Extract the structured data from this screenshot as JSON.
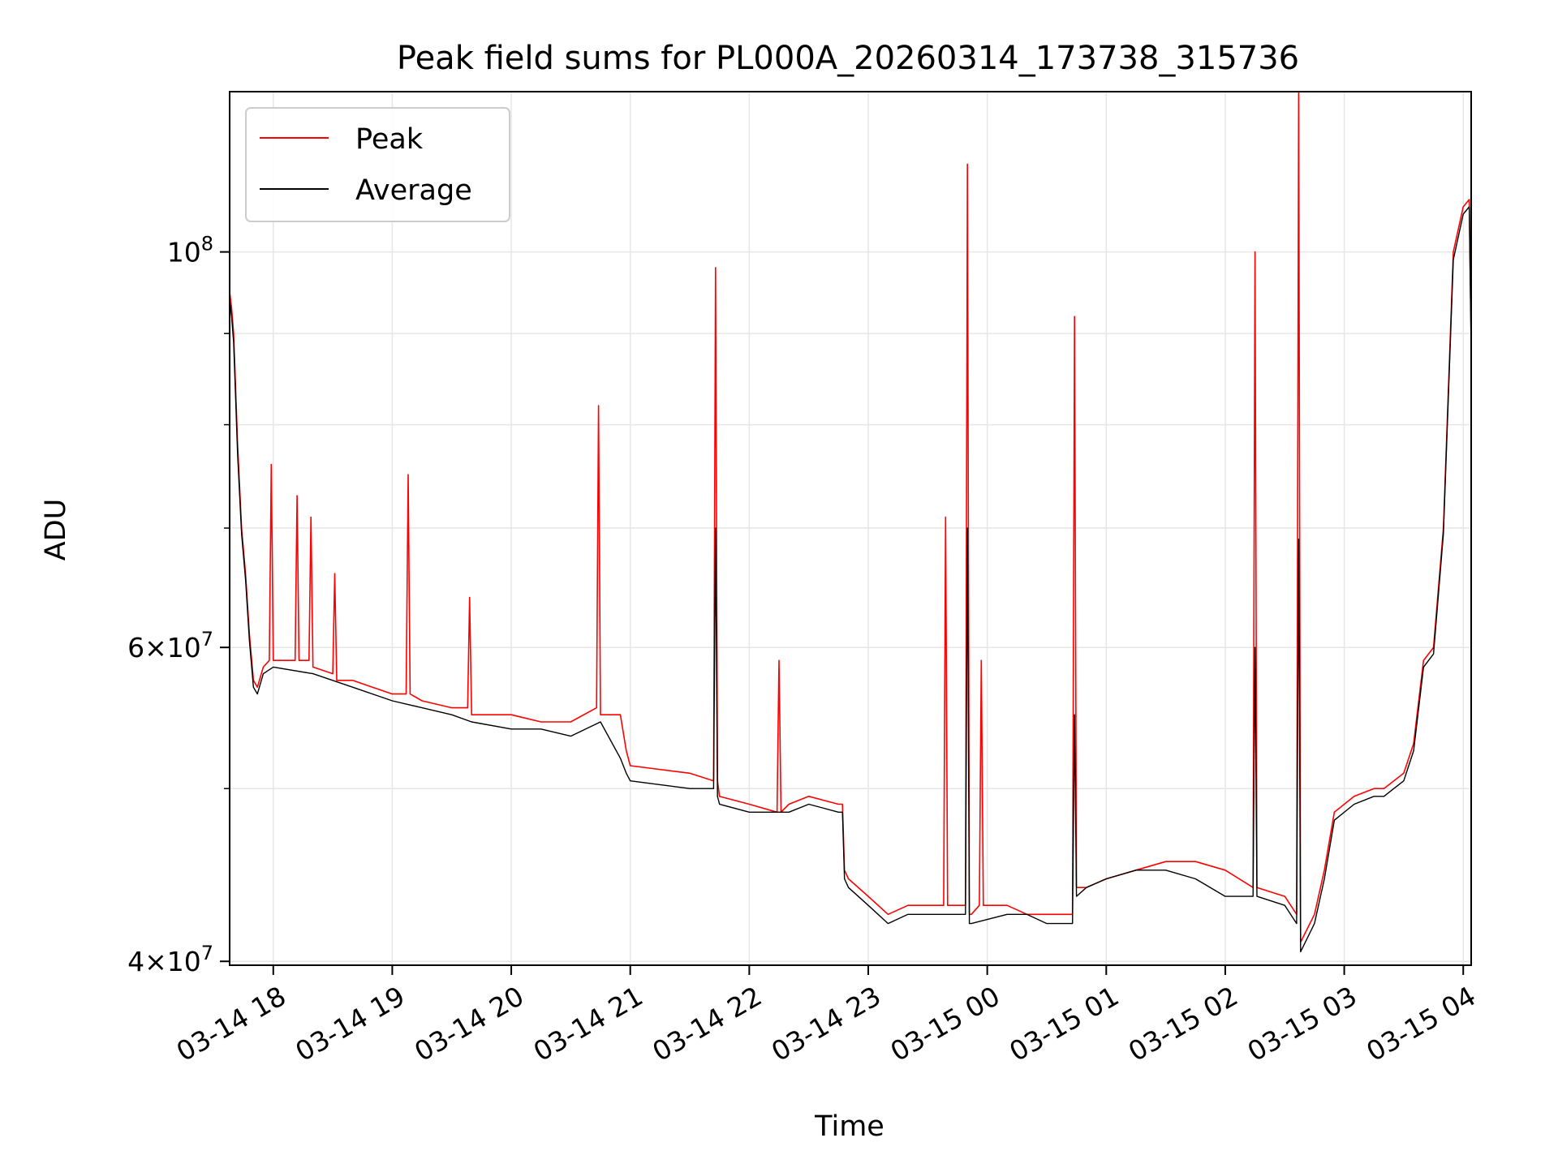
{
  "chart_data": {
    "type": "line",
    "title": "Peak field sums for PL000A_20260314_173738_315736",
    "xlabel": "Time",
    "ylabel": "ADU",
    "yscale": "log",
    "ylim": [
      39800000,
      123000000
    ],
    "xlim": [
      "2026-03-14 17:38",
      "2026-03-15 04:04"
    ],
    "x_ticks": [
      "03-14 18",
      "03-14 19",
      "03-14 20",
      "03-14 21",
      "03-14 22",
      "03-14 23",
      "03-15 00",
      "03-15 01",
      "03-15 02",
      "03-15 03",
      "03-15 04"
    ],
    "y_tick_labels": [
      {
        "value": 40000000,
        "base": "4×10",
        "exp": "7"
      },
      {
        "value": 60000000,
        "base": "6×10",
        "exp": "7"
      },
      {
        "value": 100000000,
        "base": "10",
        "exp": "8"
      }
    ],
    "y_minor_ticks": [
      50000000,
      70000000,
      80000000,
      90000000
    ],
    "grid": true,
    "legend_position": "upper-left",
    "series": [
      {
        "name": "Peak",
        "color": "#ff0000",
        "x": [
          "2026-03-14 17:38",
          "2026-03-14 17:39",
          "2026-03-14 17:40",
          "2026-03-14 17:41",
          "2026-03-14 17:42",
          "2026-03-14 17:44",
          "2026-03-14 17:46",
          "2026-03-14 17:48",
          "2026-03-14 17:50",
          "2026-03-14 17:52",
          "2026-03-14 17:55",
          "2026-03-14 17:58",
          "2026-03-14 17:59",
          "2026-03-14 18:00",
          "2026-03-14 18:05",
          "2026-03-14 18:11",
          "2026-03-14 18:12",
          "2026-03-14 18:13",
          "2026-03-14 18:18",
          "2026-03-14 18:19",
          "2026-03-14 18:20",
          "2026-03-14 18:30",
          "2026-03-14 18:31",
          "2026-03-14 18:32",
          "2026-03-14 18:40",
          "2026-03-14 18:50",
          "2026-03-14 19:00",
          "2026-03-14 19:07",
          "2026-03-14 19:08",
          "2026-03-14 19:09",
          "2026-03-14 19:15",
          "2026-03-14 19:30",
          "2026-03-14 19:38",
          "2026-03-14 19:39",
          "2026-03-14 19:40",
          "2026-03-14 20:00",
          "2026-03-14 20:15",
          "2026-03-14 20:30",
          "2026-03-14 20:43",
          "2026-03-14 20:44",
          "2026-03-14 20:45",
          "2026-03-14 20:55",
          "2026-03-14 20:58",
          "2026-03-14 21:00",
          "2026-03-14 21:30",
          "2026-03-14 21:42",
          "2026-03-14 21:43",
          "2026-03-14 21:44",
          "2026-03-14 21:45",
          "2026-03-14 22:00",
          "2026-03-14 22:14",
          "2026-03-14 22:15",
          "2026-03-14 22:16",
          "2026-03-14 22:20",
          "2026-03-14 22:30",
          "2026-03-14 22:45",
          "2026-03-14 22:47",
          "2026-03-14 22:48",
          "2026-03-14 22:50",
          "2026-03-14 23:00",
          "2026-03-14 23:10",
          "2026-03-14 23:20",
          "2026-03-14 23:38",
          "2026-03-14 23:39",
          "2026-03-14 23:40",
          "2026-03-14 23:49",
          "2026-03-14 23:50",
          "2026-03-14 23:51",
          "2026-03-14 23:52",
          "2026-03-14 23:56",
          "2026-03-14 23:57",
          "2026-03-14 23:58",
          "2026-03-15 00:10",
          "2026-03-15 00:20",
          "2026-03-15 00:30",
          "2026-03-15 00:43",
          "2026-03-15 00:44",
          "2026-03-15 00:45",
          "2026-03-15 00:50",
          "2026-03-15 01:00",
          "2026-03-15 01:15",
          "2026-03-15 01:30",
          "2026-03-15 01:45",
          "2026-03-15 02:00",
          "2026-03-15 02:14",
          "2026-03-15 02:15",
          "2026-03-15 02:16",
          "2026-03-15 02:30",
          "2026-03-15 02:36",
          "2026-03-15 02:37",
          "2026-03-15 02:38",
          "2026-03-15 02:45",
          "2026-03-15 02:50",
          "2026-03-15 02:55",
          "2026-03-15 03:05",
          "2026-03-15 03:15",
          "2026-03-15 03:20",
          "2026-03-15 03:25",
          "2026-03-15 03:30",
          "2026-03-15 03:35",
          "2026-03-15 03:40",
          "2026-03-15 03:45",
          "2026-03-15 03:50",
          "2026-03-15 03:55",
          "2026-03-15 04:00",
          "2026-03-15 04:03",
          "2026-03-15 04:04"
        ],
        "y": [
          95000000,
          93000000,
          90000000,
          84000000,
          78000000,
          70000000,
          66000000,
          61000000,
          57500000,
          57000000,
          58500000,
          59000000,
          76000000,
          59000000,
          59000000,
          59000000,
          73000000,
          59000000,
          59000000,
          71000000,
          58500000,
          58000000,
          66000000,
          57500000,
          57500000,
          57000000,
          56500000,
          56500000,
          75000000,
          56500000,
          56000000,
          55500000,
          55500000,
          64000000,
          55000000,
          55000000,
          54500000,
          54500000,
          55500000,
          82000000,
          55000000,
          55000000,
          52500000,
          51500000,
          51000000,
          50500000,
          98000000,
          50500000,
          49500000,
          49000000,
          48500000,
          59000000,
          48500000,
          49000000,
          49500000,
          49000000,
          49000000,
          45000000,
          44500000,
          43500000,
          42500000,
          43000000,
          43000000,
          71000000,
          43000000,
          43000000,
          112000000,
          42500000,
          42500000,
          43000000,
          59000000,
          43000000,
          43000000,
          42500000,
          42500000,
          42500000,
          92000000,
          44000000,
          44000000,
          44500000,
          45000000,
          45500000,
          45500000,
          45000000,
          44000000,
          100000000,
          44000000,
          43500000,
          42500000,
          123000000,
          41000000,
          42500000,
          45000000,
          48500000,
          49500000,
          50000000,
          50000000,
          50500000,
          51000000,
          53000000,
          59000000,
          60000000,
          70000000,
          100000000,
          106000000,
          107000000,
          89000000
        ]
      },
      {
        "name": "Average",
        "color": "#000000",
        "x": [
          "2026-03-14 17:38",
          "2026-03-14 17:39",
          "2026-03-14 17:40",
          "2026-03-14 17:41",
          "2026-03-14 17:42",
          "2026-03-14 17:44",
          "2026-03-14 17:46",
          "2026-03-14 17:48",
          "2026-03-14 17:50",
          "2026-03-14 17:52",
          "2026-03-14 17:55",
          "2026-03-14 18:00",
          "2026-03-14 18:20",
          "2026-03-14 18:40",
          "2026-03-14 19:00",
          "2026-03-14 19:15",
          "2026-03-14 19:30",
          "2026-03-14 19:40",
          "2026-03-14 20:00",
          "2026-03-14 20:15",
          "2026-03-14 20:30",
          "2026-03-14 20:45",
          "2026-03-14 20:55",
          "2026-03-14 20:58",
          "2026-03-14 21:00",
          "2026-03-14 21:30",
          "2026-03-14 21:42",
          "2026-03-14 21:43",
          "2026-03-14 21:44",
          "2026-03-14 21:45",
          "2026-03-14 22:00",
          "2026-03-14 22:20",
          "2026-03-14 22:30",
          "2026-03-14 22:45",
          "2026-03-14 22:47",
          "2026-03-14 22:48",
          "2026-03-14 22:50",
          "2026-03-14 23:00",
          "2026-03-14 23:10",
          "2026-03-14 23:20",
          "2026-03-14 23:40",
          "2026-03-14 23:49",
          "2026-03-14 23:50",
          "2026-03-14 23:51",
          "2026-03-14 23:52",
          "2026-03-15 00:10",
          "2026-03-15 00:20",
          "2026-03-15 00:30",
          "2026-03-15 00:43",
          "2026-03-15 00:44",
          "2026-03-15 00:45",
          "2026-03-15 00:50",
          "2026-03-15 01:00",
          "2026-03-15 01:15",
          "2026-03-15 01:30",
          "2026-03-15 01:45",
          "2026-03-15 02:00",
          "2026-03-15 02:14",
          "2026-03-15 02:15",
          "2026-03-15 02:16",
          "2026-03-15 02:30",
          "2026-03-15 02:36",
          "2026-03-15 02:37",
          "2026-03-15 02:38",
          "2026-03-15 02:45",
          "2026-03-15 02:50",
          "2026-03-15 02:55",
          "2026-03-15 03:05",
          "2026-03-15 03:15",
          "2026-03-15 03:20",
          "2026-03-15 03:25",
          "2026-03-15 03:30",
          "2026-03-15 03:35",
          "2026-03-15 03:40",
          "2026-03-15 03:45",
          "2026-03-15 03:50",
          "2026-03-15 03:55",
          "2026-03-15 04:00",
          "2026-03-15 04:03",
          "2026-03-15 04:04"
        ],
        "y": [
          94000000,
          92000000,
          89000000,
          83000000,
          77000000,
          69500000,
          65500000,
          60500000,
          57000000,
          56500000,
          58000000,
          58500000,
          58000000,
          57000000,
          56000000,
          55500000,
          55000000,
          54500000,
          54000000,
          54000000,
          53500000,
          54500000,
          52000000,
          51000000,
          50500000,
          50000000,
          50000000,
          70000000,
          49500000,
          49000000,
          48500000,
          48500000,
          49000000,
          48500000,
          48500000,
          44500000,
          44000000,
          43000000,
          42000000,
          42500000,
          42500000,
          42500000,
          70000000,
          42000000,
          42000000,
          42500000,
          42500000,
          42000000,
          42000000,
          55000000,
          43500000,
          44000000,
          44500000,
          45000000,
          45000000,
          44500000,
          43500000,
          43500000,
          60000000,
          43500000,
          43000000,
          42000000,
          69000000,
          40500000,
          42000000,
          44500000,
          48000000,
          49000000,
          49500000,
          49500000,
          50000000,
          50500000,
          52500000,
          58500000,
          59500000,
          69500000,
          99000000,
          105000000,
          106000000,
          88000000
        ]
      }
    ]
  }
}
